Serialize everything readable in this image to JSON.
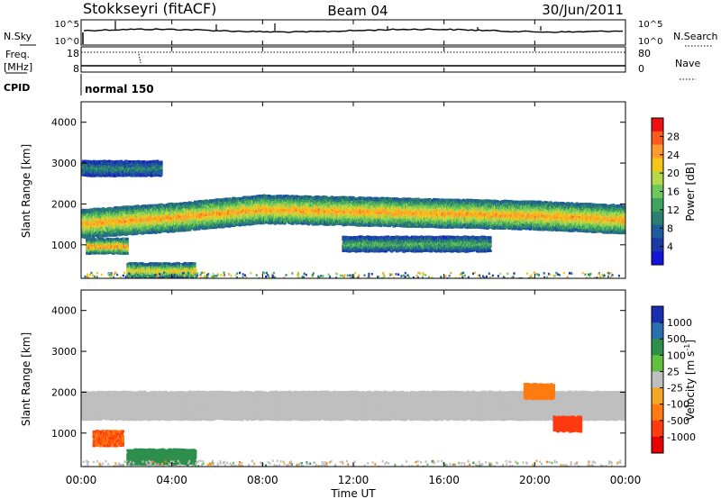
{
  "header": {
    "site": "Stokkseyri (fitACF)",
    "beam": "Beam 04",
    "date": "30/Jun/2011"
  },
  "summary_panels": {
    "nsky": {
      "label": "N.Sky",
      "left_ticks": [
        "10^5",
        "10^0"
      ],
      "right_ticks": [
        "10^5",
        "10^0"
      ],
      "right_label": "N.Search"
    },
    "freq": {
      "label_top": "Freq.",
      "label_bottom": "[MHz]",
      "left_ticks": [
        "18",
        "8"
      ],
      "right_ticks": [
        "80",
        "0"
      ],
      "right_label": "Nave"
    },
    "cpid": {
      "label": "CPID",
      "value": "normal 150"
    }
  },
  "axes": {
    "ylabel": "Slant Range [km]",
    "yticks": [
      "4000",
      "3000",
      "2000",
      "1000"
    ],
    "xticks": [
      "00:00",
      "04:00",
      "08:00",
      "12:00",
      "16:00",
      "20:00",
      "00:00"
    ],
    "xlabel": "Time UT"
  },
  "colorbars": {
    "power": {
      "title": "Power [dB]",
      "ticks": [
        "28",
        "24",
        "20",
        "16",
        "12",
        "8",
        "4"
      ],
      "colors": [
        "#ee1111",
        "#ff5a1e",
        "#ff9a2e",
        "#f5c518",
        "#b6d94c",
        "#6fc85c",
        "#3fa55e",
        "#2a7f6f",
        "#205c9c",
        "#1a3aa8",
        "#1414d8"
      ]
    },
    "velocity": {
      "title": "Velocity [m s",
      "title_sup": "-1",
      "title_end": "]",
      "ticks": [
        "1000",
        "500",
        "100",
        "25",
        "-25",
        "-100",
        "-500",
        "-1000"
      ],
      "colors": [
        "#1a2fb0",
        "#2a70b0",
        "#2e8f4c",
        "#60c040",
        "#bfbfbf",
        "#f5a623",
        "#ff7a10",
        "#ff3b10",
        "#e60000"
      ]
    }
  },
  "chart_data": [
    {
      "type": "heatmap",
      "title": "Power",
      "x_range_hours_ut": [
        0,
        24
      ],
      "ylim_km": [
        180,
        4500
      ],
      "colorbar_range_db": [
        0,
        30
      ],
      "echo_bands": [
        {
          "t_start_h": 0.0,
          "t_end_h": 24.0,
          "range_km_center": [
            1550,
            1700,
            1900,
            1850,
            1800,
            1750,
            1650
          ],
          "power_db_peak": 24
        },
        {
          "t_start_h": 0.2,
          "t_end_h": 2.0,
          "range_km_center": [
            1000
          ],
          "power_db_peak": 26
        },
        {
          "t_start_h": 2.0,
          "t_end_h": 5.0,
          "range_km_center": [
            400
          ],
          "power_db_peak": 22
        },
        {
          "t_start_h": 11.5,
          "t_end_h": 18.0,
          "range_km_center": [
            1050
          ],
          "power_db_peak": 14
        },
        {
          "t_start_h": 0.0,
          "t_end_h": 3.5,
          "range_km_center": [
            2900
          ],
          "power_db_peak": 10
        }
      ]
    },
    {
      "type": "heatmap",
      "title": "Velocity",
      "x_range_hours_ut": [
        0,
        24
      ],
      "ylim_km": [
        180,
        4500
      ],
      "colorbar_range_m_s": [
        -1000,
        1000
      ],
      "echo_bands": [
        {
          "t_start_h": 0.0,
          "t_end_h": 24.0,
          "range_km_center": [
            1700
          ],
          "velocity_m_s": 0
        },
        {
          "t_start_h": 0.5,
          "t_end_h": 1.8,
          "range_km_center": [
            900
          ],
          "velocity_m_s": -500
        },
        {
          "t_start_h": 2.0,
          "t_end_h": 5.0,
          "range_km_center": [
            450
          ],
          "velocity_m_s": 200
        },
        {
          "t_start_h": 19.5,
          "t_end_h": 20.8,
          "range_km_center": [
            2050
          ],
          "velocity_m_s": -300
        },
        {
          "t_start_h": 20.8,
          "t_end_h": 22.0,
          "range_km_center": [
            1250
          ],
          "velocity_m_s": -900
        }
      ]
    }
  ]
}
